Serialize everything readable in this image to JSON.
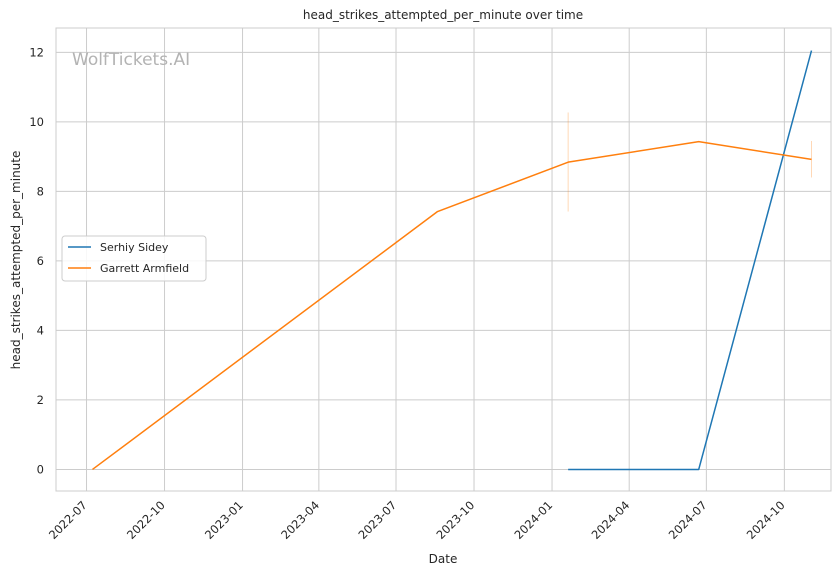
{
  "watermark": "WolfTickets.AI",
  "chart_data": {
    "type": "line",
    "title": "head_strikes_attempted_per_minute over time",
    "xlabel": "Date",
    "ylabel": "head_strikes_attempted_per_minute",
    "x_ticks": [
      "2022-07",
      "2022-10",
      "2023-01",
      "2023-04",
      "2023-07",
      "2023-10",
      "2024-01",
      "2024-04",
      "2024-07",
      "2024-10"
    ],
    "y_ticks": [
      0,
      2,
      4,
      6,
      8,
      10,
      12
    ],
    "xlim": [
      "2022-05-26",
      "2024-11-25"
    ],
    "ylim": [
      -0.62,
      12.7
    ],
    "grid": true,
    "legend_position": "center-left",
    "series": [
      {
        "name": "Serhiy Sidey",
        "color": "#1f77b4",
        "x": [
          "2024-01-20",
          "2024-06-22",
          "2024-11-02"
        ],
        "y": [
          0,
          0,
          12.05
        ]
      },
      {
        "name": "Garrett Armfield",
        "color": "#ff7f0e",
        "x": [
          "2022-07-08",
          "2023-08-19",
          "2024-01-20",
          "2024-06-22",
          "2024-11-02"
        ],
        "y": [
          0,
          7.42,
          8.84,
          9.43,
          8.92
        ],
        "error_bars": [
          {
            "x": "2024-01-20",
            "low": 7.42,
            "high": 10.27
          },
          {
            "x": "2024-11-02",
            "low": 8.4,
            "high": 9.45
          }
        ]
      }
    ]
  }
}
